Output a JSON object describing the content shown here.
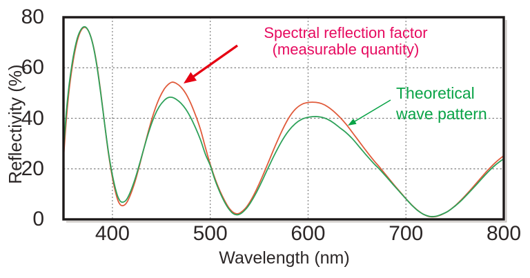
{
  "figure": {
    "background": "#ffffff"
  },
  "chart_data": {
    "type": "line",
    "title": "",
    "xlabel": "Wavelength (nm)",
    "ylabel": "Reflectivity (%)",
    "xlim": [
      350,
      800
    ],
    "ylim": [
      0,
      80
    ],
    "xticks": [
      400,
      500,
      600,
      700,
      800
    ],
    "yticks": [
      0,
      20,
      40,
      60,
      80
    ],
    "grid": true,
    "legend_position": "inline-annotations",
    "series": [
      {
        "name": "Spectral reflection factor (measurable quantity)",
        "color": "#e05a3a",
        "points": [
          [
            350,
            24
          ],
          [
            353,
            40
          ],
          [
            356,
            52
          ],
          [
            360,
            63
          ],
          [
            364,
            70.5
          ],
          [
            368,
            74.8
          ],
          [
            372,
            76
          ],
          [
            376,
            74.2
          ],
          [
            380,
            69.5
          ],
          [
            384,
            61.5
          ],
          [
            388,
            50.5
          ],
          [
            392,
            38
          ],
          [
            396,
            26
          ],
          [
            400,
            16.5
          ],
          [
            404,
            9.5
          ],
          [
            407,
            6.4
          ],
          [
            410,
            5.4
          ],
          [
            414,
            6.3
          ],
          [
            418,
            9.3
          ],
          [
            423,
            14.8
          ],
          [
            428,
            21.8
          ],
          [
            433,
            29.3
          ],
          [
            438,
            36.6
          ],
          [
            443,
            43
          ],
          [
            448,
            48
          ],
          [
            453,
            51.6
          ],
          [
            457,
            53.4
          ],
          [
            461,
            54.3
          ],
          [
            465,
            53.9
          ],
          [
            470,
            52.4
          ],
          [
            475,
            49.8
          ],
          [
            480,
            46
          ],
          [
            485,
            41.2
          ],
          [
            490,
            35.6
          ],
          [
            495,
            28.5
          ],
          [
            500,
            21.8
          ],
          [
            505,
            16
          ],
          [
            510,
            11.2
          ],
          [
            515,
            7.2
          ],
          [
            519,
            4.6
          ],
          [
            523,
            2.9
          ],
          [
            527,
            2.2
          ],
          [
            531,
            2.7
          ],
          [
            536,
            4.4
          ],
          [
            541,
            7.2
          ],
          [
            547,
            11.6
          ],
          [
            553,
            16.7
          ],
          [
            559,
            22.2
          ],
          [
            566,
            28.7
          ],
          [
            573,
            34.8
          ],
          [
            580,
            40
          ],
          [
            587,
            43.6
          ],
          [
            594,
            45.6
          ],
          [
            601,
            46.3
          ],
          [
            608,
            46.3
          ],
          [
            614,
            45.8
          ],
          [
            620,
            44.6
          ],
          [
            626,
            42.8
          ],
          [
            632,
            40.6
          ],
          [
            639,
            37.6
          ],
          [
            646,
            34
          ],
          [
            653,
            30.4
          ],
          [
            660,
            26.8
          ],
          [
            667,
            23.4
          ],
          [
            674,
            20.2
          ],
          [
            681,
            16.9
          ],
          [
            688,
            13.6
          ],
          [
            694,
            10.9
          ],
          [
            700,
            8.2
          ],
          [
            706,
            5.7
          ],
          [
            712,
            3.6
          ],
          [
            718,
            2
          ],
          [
            724,
            1.1
          ],
          [
            730,
            1.1
          ],
          [
            736,
            1.8
          ],
          [
            743,
            3.2
          ],
          [
            750,
            5.3
          ],
          [
            757,
            7.9
          ],
          [
            764,
            10.8
          ],
          [
            771,
            13.9
          ],
          [
            778,
            17
          ],
          [
            785,
            20
          ],
          [
            792,
            22.7
          ],
          [
            800,
            25.2
          ]
        ]
      },
      {
        "name": "Theoretical wave pattern",
        "color": "#2da159",
        "points": [
          [
            350,
            27
          ],
          [
            353,
            43
          ],
          [
            356,
            54
          ],
          [
            360,
            64.5
          ],
          [
            364,
            71.5
          ],
          [
            368,
            75.2
          ],
          [
            372,
            76.2
          ],
          [
            376,
            74.2
          ],
          [
            380,
            69.3
          ],
          [
            384,
            61
          ],
          [
            388,
            50
          ],
          [
            392,
            38
          ],
          [
            396,
            26.5
          ],
          [
            400,
            17.5
          ],
          [
            404,
            10.8
          ],
          [
            407,
            7.8
          ],
          [
            410,
            6.8
          ],
          [
            414,
            7.6
          ],
          [
            418,
            10.5
          ],
          [
            423,
            15.8
          ],
          [
            428,
            22.3
          ],
          [
            433,
            29.2
          ],
          [
            438,
            35.6
          ],
          [
            443,
            40.9
          ],
          [
            448,
            44.7
          ],
          [
            453,
            47.1
          ],
          [
            457,
            48.2
          ],
          [
            461,
            48.3
          ],
          [
            465,
            47.6
          ],
          [
            470,
            46
          ],
          [
            475,
            43.6
          ],
          [
            480,
            40.3
          ],
          [
            485,
            36.2
          ],
          [
            490,
            31.5
          ],
          [
            495,
            25.8
          ],
          [
            500,
            21.3
          ],
          [
            505,
            15.4
          ],
          [
            510,
            10.6
          ],
          [
            515,
            6.6
          ],
          [
            519,
            4.1
          ],
          [
            523,
            2.4
          ],
          [
            527,
            1.8
          ],
          [
            531,
            2.2
          ],
          [
            536,
            3.9
          ],
          [
            541,
            6.5
          ],
          [
            547,
            10.5
          ],
          [
            553,
            15.2
          ],
          [
            559,
            20.2
          ],
          [
            566,
            25.8
          ],
          [
            573,
            30.9
          ],
          [
            580,
            35
          ],
          [
            587,
            37.9
          ],
          [
            594,
            39.7
          ],
          [
            601,
            40.5
          ],
          [
            608,
            40.7
          ],
          [
            614,
            40.4
          ],
          [
            620,
            39.6
          ],
          [
            626,
            38.2
          ],
          [
            632,
            36.4
          ],
          [
            639,
            34.3
          ],
          [
            646,
            31.6
          ],
          [
            653,
            28.4
          ],
          [
            660,
            25.2
          ],
          [
            667,
            22.2
          ],
          [
            674,
            19.4
          ],
          [
            681,
            16.4
          ],
          [
            688,
            13.3
          ],
          [
            694,
            10.7
          ],
          [
            700,
            8.1
          ],
          [
            706,
            5.6
          ],
          [
            712,
            3.5
          ],
          [
            718,
            2
          ],
          [
            724,
            1.2
          ],
          [
            730,
            1.2
          ],
          [
            736,
            1.9
          ],
          [
            743,
            3.2
          ],
          [
            750,
            5.2
          ],
          [
            757,
            7.6
          ],
          [
            764,
            10.4
          ],
          [
            771,
            13.3
          ],
          [
            778,
            16.3
          ],
          [
            785,
            19.2
          ],
          [
            792,
            21.7
          ],
          [
            800,
            24
          ]
        ]
      }
    ]
  },
  "annotations": {
    "spectral": {
      "line1": "Spectral reflection factor",
      "line2": "(measurable quantity)",
      "color": "#e60a5f",
      "arrow_color": "#e60012"
    },
    "theoretical": {
      "line1": "Theoretical",
      "line2": "wave pattern",
      "color": "#0aa347",
      "arrow_color": "#0aa347"
    }
  },
  "axis": {
    "line_color": "#1c1818",
    "shadow_color": "#c9c4c1",
    "tick_color": "#2b2626",
    "grid_color": "#7f7f7f"
  }
}
